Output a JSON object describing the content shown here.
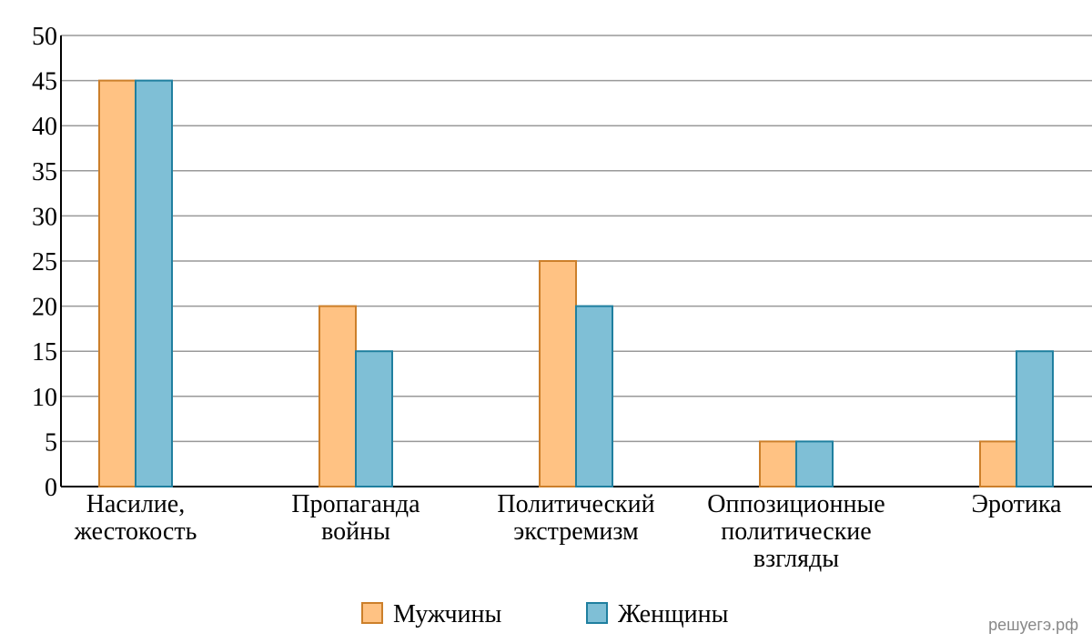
{
  "chart_data": {
    "type": "bar",
    "categories": [
      "Насилие, жестокость",
      "Пропаганда войны",
      "Политический экстремизм",
      "Оппозиционные политические взгляды",
      "Эротика"
    ],
    "series": [
      {
        "name": "Мужчины",
        "color": "#ffc283",
        "values": [
          45,
          20,
          25,
          5,
          5
        ]
      },
      {
        "name": "Женщины",
        "color": "#7fbfd6",
        "values": [
          45,
          15,
          20,
          5,
          15
        ]
      }
    ],
    "ylim": [
      0,
      50
    ],
    "yticks": [
      0,
      5,
      10,
      15,
      20,
      25,
      30,
      35,
      40,
      45,
      50
    ],
    "grid": true,
    "legend": "bottom",
    "watermark": "решуегэ.рф"
  }
}
